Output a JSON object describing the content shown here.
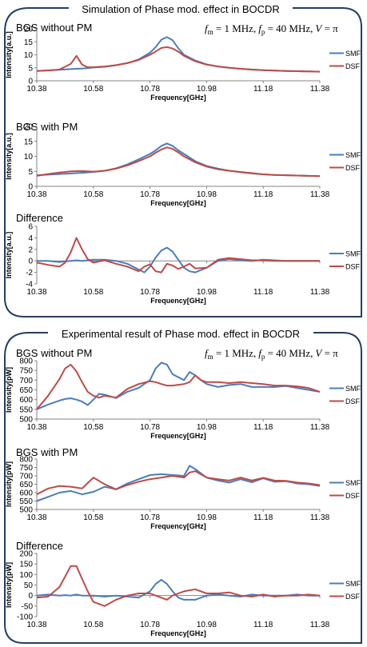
{
  "colors": {
    "smf": "#4a7ebb",
    "dsf": "#be4b48",
    "frame": "#243f60",
    "axis": "#868686",
    "grid": "#d9d9d9"
  },
  "panels": [
    {
      "title": "Simulation of Phase mod. effect in BOCDR",
      "params": {
        "fm": "f",
        "fm_sub": "m",
        "fm_rest": " = 1 MHz,",
        "fp": "f",
        "fp_sub": "p",
        "fp_rest": " = 40 MHz,",
        "v": "V",
        "v_rest": " = π"
      }
    },
    {
      "title": "Experimental result of Phase mod. effect in BOCDR",
      "params": {
        "fm": "f",
        "fm_sub": "m",
        "fm_rest": " = 1 MHz,",
        "fp": "f",
        "fp_sub": "p",
        "fp_rest": " = 40 MHz,",
        "v": "V",
        "v_rest": " = π"
      }
    }
  ],
  "chart_data": [
    {
      "type": "line",
      "title": "BGS without PM",
      "xlabel": "Frequency[GHz]",
      "ylabel": "Intensity[a.u.]",
      "xlim": [
        10.38,
        11.38
      ],
      "ylim": [
        0,
        20
      ],
      "yticks": [
        0,
        5,
        10,
        15,
        20
      ],
      "xticks": [
        "10.38",
        "10.58",
        "10.78",
        "10.98",
        "11.18",
        "11.38"
      ],
      "x": [
        10.38,
        10.42,
        10.46,
        10.5,
        10.52,
        10.54,
        10.56,
        10.58,
        10.62,
        10.66,
        10.7,
        10.74,
        10.78,
        10.8,
        10.82,
        10.84,
        10.86,
        10.88,
        10.9,
        10.94,
        10.98,
        11.02,
        11.06,
        11.1,
        11.14,
        11.18,
        11.22,
        11.26,
        11.3,
        11.34,
        11.38
      ],
      "series": [
        {
          "name": "SMF",
          "values": [
            3.8,
            4.0,
            4.2,
            4.5,
            4.6,
            4.7,
            4.9,
            5.1,
            5.4,
            6.0,
            6.8,
            8.2,
            10.8,
            13.0,
            15.8,
            16.8,
            15.6,
            12.5,
            10.0,
            7.8,
            6.3,
            5.5,
            5.0,
            4.6,
            4.3,
            4.1,
            3.9,
            3.8,
            3.7,
            3.6,
            3.5
          ]
        },
        {
          "name": "DSF",
          "values": [
            3.8,
            4.0,
            4.3,
            6.5,
            9.6,
            6.2,
            5.2,
            5.2,
            5.5,
            6.0,
            6.8,
            8.0,
            10.0,
            11.3,
            12.6,
            13.0,
            12.4,
            11.2,
            9.6,
            7.5,
            6.2,
            5.5,
            5.0,
            4.6,
            4.3,
            4.1,
            3.9,
            3.8,
            3.7,
            3.6,
            3.5
          ]
        }
      ]
    },
    {
      "type": "line",
      "title": "BGS with PM",
      "xlabel": "Frequency[GHz]",
      "ylabel": "Intensity[a.u.]",
      "xlim": [
        10.38,
        11.38
      ],
      "ylim": [
        0,
        20
      ],
      "yticks": [
        0,
        5,
        10,
        15,
        20
      ],
      "xticks": [
        "10.38",
        "10.58",
        "10.78",
        "10.98",
        "11.18",
        "11.38"
      ],
      "x": [
        10.38,
        10.42,
        10.46,
        10.5,
        10.54,
        10.58,
        10.62,
        10.66,
        10.7,
        10.74,
        10.78,
        10.8,
        10.82,
        10.84,
        10.86,
        10.88,
        10.9,
        10.94,
        10.98,
        11.02,
        11.06,
        11.1,
        11.14,
        11.18,
        11.22,
        11.26,
        11.3,
        11.34,
        11.38
      ],
      "series": [
        {
          "name": "SMF",
          "values": [
            3.7,
            3.9,
            4.1,
            4.3,
            4.5,
            4.8,
            5.2,
            6.0,
            7.3,
            9.0,
            10.8,
            12.0,
            13.5,
            14.3,
            13.5,
            12.0,
            10.8,
            8.4,
            6.8,
            5.9,
            5.2,
            4.7,
            4.3,
            4.0,
            3.8,
            3.7,
            3.6,
            3.5,
            3.4
          ]
        },
        {
          "name": "DSF",
          "values": [
            3.5,
            4.1,
            4.6,
            5.0,
            5.1,
            4.9,
            5.2,
            5.9,
            7.0,
            8.4,
            10.0,
            11.2,
            12.3,
            13.0,
            12.5,
            11.3,
            10.0,
            8.0,
            6.6,
            5.7,
            5.2,
            4.8,
            4.4,
            4.0,
            3.8,
            3.7,
            3.6,
            3.5,
            3.4
          ]
        }
      ]
    },
    {
      "type": "line",
      "title": "Difference",
      "xlabel": "Frequency[GHz]",
      "ylabel": "Intensity[a.u.]",
      "xlim": [
        10.38,
        11.38
      ],
      "ylim": [
        -4,
        6
      ],
      "yticks": [
        -4,
        -2,
        0,
        2,
        4,
        6
      ],
      "xticks": [
        "10.38",
        "10.58",
        "10.78",
        "10.98",
        "11.18",
        "11.38"
      ],
      "x": [
        10.38,
        10.42,
        10.46,
        10.48,
        10.5,
        10.52,
        10.54,
        10.56,
        10.58,
        10.62,
        10.66,
        10.7,
        10.74,
        10.76,
        10.78,
        10.8,
        10.82,
        10.84,
        10.86,
        10.88,
        10.9,
        10.92,
        10.94,
        10.98,
        11.02,
        11.06,
        11.1,
        11.14,
        11.18,
        11.22,
        11.26,
        11.3,
        11.34,
        11.38
      ],
      "series": [
        {
          "name": "SMF",
          "values": [
            0.0,
            0.0,
            -0.2,
            -0.1,
            0.0,
            0.1,
            0.0,
            0.1,
            0.2,
            0.2,
            0.0,
            -0.5,
            -1.5,
            -2.0,
            -1.0,
            0.6,
            1.8,
            2.3,
            1.6,
            0.2,
            -1.2,
            -1.8,
            -2.0,
            -1.2,
            0.0,
            0.3,
            0.1,
            0.0,
            0.2,
            0.1,
            0.0,
            0.0,
            0.0,
            0.0
          ]
        },
        {
          "name": "DSF",
          "values": [
            -0.3,
            -0.7,
            -1.0,
            -0.3,
            1.5,
            4.0,
            2.0,
            0.3,
            -0.3,
            0.1,
            -0.5,
            -1.0,
            -1.8,
            -1.0,
            -0.6,
            -1.8,
            -2.0,
            -0.5,
            -0.8,
            -1.4,
            -1.0,
            -0.5,
            -1.3,
            -1.2,
            0.2,
            0.5,
            0.3,
            0.1,
            0.1,
            0.0,
            0.0,
            0.0,
            0.0,
            0.0
          ]
        }
      ]
    },
    {
      "type": "line",
      "title": "BGS without PM",
      "xlabel": "Frequency[GHz]",
      "ylabel": "Intensity[pW]",
      "xlim": [
        10.38,
        11.38
      ],
      "ylim": [
        500,
        800
      ],
      "yticks": [
        500,
        550,
        600,
        650,
        700,
        750,
        800
      ],
      "xticks": [
        "10.38",
        "10.58",
        "10.78",
        "10.98",
        "11.18",
        "11.38"
      ],
      "x": [
        10.38,
        10.42,
        10.46,
        10.48,
        10.5,
        10.52,
        10.54,
        10.56,
        10.58,
        10.6,
        10.62,
        10.66,
        10.7,
        10.74,
        10.78,
        10.8,
        10.82,
        10.84,
        10.86,
        10.9,
        10.92,
        10.94,
        10.96,
        10.98,
        11.02,
        11.06,
        11.1,
        11.14,
        11.18,
        11.22,
        11.26,
        11.3,
        11.34,
        11.38
      ],
      "series": [
        {
          "name": "SMF",
          "values": [
            550,
            575,
            595,
            603,
            607,
            600,
            590,
            572,
            600,
            630,
            625,
            608,
            640,
            660,
            700,
            760,
            790,
            780,
            730,
            700,
            742,
            725,
            700,
            680,
            665,
            675,
            680,
            665,
            665,
            665,
            670,
            660,
            650,
            640
          ]
        },
        {
          "name": "DSF",
          "values": [
            550,
            620,
            705,
            760,
            780,
            745,
            690,
            640,
            620,
            610,
            620,
            610,
            655,
            680,
            695,
            690,
            680,
            672,
            672,
            680,
            690,
            725,
            700,
            690,
            690,
            685,
            690,
            685,
            680,
            672,
            672,
            668,
            660,
            640
          ]
        }
      ]
    },
    {
      "type": "line",
      "title": "BGS with PM",
      "xlabel": "Frequency[GHz]",
      "ylabel": "Intensity[pW]",
      "xlim": [
        10.38,
        11.38
      ],
      "ylim": [
        500,
        800
      ],
      "yticks": [
        500,
        550,
        600,
        650,
        700,
        750,
        800
      ],
      "xticks": [
        "10.38",
        "10.58",
        "10.78",
        "10.98",
        "11.18",
        "11.38"
      ],
      "x": [
        10.38,
        10.42,
        10.46,
        10.5,
        10.54,
        10.58,
        10.62,
        10.66,
        10.7,
        10.74,
        10.78,
        10.82,
        10.86,
        10.9,
        10.92,
        10.94,
        10.98,
        11.02,
        11.06,
        11.1,
        11.14,
        11.18,
        11.22,
        11.26,
        11.3,
        11.34,
        11.38
      ],
      "series": [
        {
          "name": "SMF",
          "values": [
            550,
            575,
            600,
            610,
            590,
            605,
            635,
            620,
            655,
            680,
            705,
            710,
            705,
            700,
            760,
            740,
            690,
            672,
            660,
            680,
            662,
            685,
            665,
            668,
            655,
            650,
            640
          ]
        },
        {
          "name": "DSF",
          "values": [
            590,
            625,
            640,
            635,
            625,
            690,
            650,
            620,
            645,
            665,
            680,
            690,
            700,
            690,
            720,
            728,
            690,
            680,
            672,
            690,
            672,
            688,
            672,
            670,
            660,
            655,
            645
          ]
        }
      ]
    },
    {
      "type": "line",
      "title": "Difference",
      "xlabel": "Frequency[GHz]",
      "ylabel": "Intensity[pW]",
      "xlim": [
        10.38,
        11.38
      ],
      "ylim": [
        -100,
        200
      ],
      "yticks": [
        -100,
        -50,
        0,
        50,
        100,
        150,
        200
      ],
      "xticks": [
        "10.38",
        "10.58",
        "10.78",
        "10.98",
        "11.18",
        "11.38"
      ],
      "x": [
        10.38,
        10.42,
        10.46,
        10.48,
        10.5,
        10.52,
        10.54,
        10.56,
        10.58,
        10.62,
        10.66,
        10.7,
        10.74,
        10.78,
        10.8,
        10.82,
        10.84,
        10.86,
        10.88,
        10.9,
        10.94,
        10.98,
        11.02,
        11.06,
        11.1,
        11.14,
        11.18,
        11.22,
        11.26,
        11.3,
        11.34,
        11.38
      ],
      "series": [
        {
          "name": "SMF",
          "values": [
            0,
            5,
            0,
            2,
            0,
            5,
            0,
            0,
            0,
            -5,
            0,
            -5,
            -10,
            20,
            55,
            75,
            55,
            20,
            -10,
            -20,
            -20,
            0,
            5,
            0,
            -5,
            5,
            0,
            0,
            0,
            5,
            0,
            0
          ]
        },
        {
          "name": "DSF",
          "values": [
            -10,
            -5,
            40,
            90,
            140,
            140,
            80,
            20,
            -30,
            -50,
            -20,
            0,
            10,
            10,
            0,
            -10,
            -20,
            0,
            10,
            20,
            30,
            10,
            10,
            15,
            0,
            -5,
            5,
            -5,
            0,
            0,
            5,
            0
          ]
        }
      ]
    }
  ]
}
